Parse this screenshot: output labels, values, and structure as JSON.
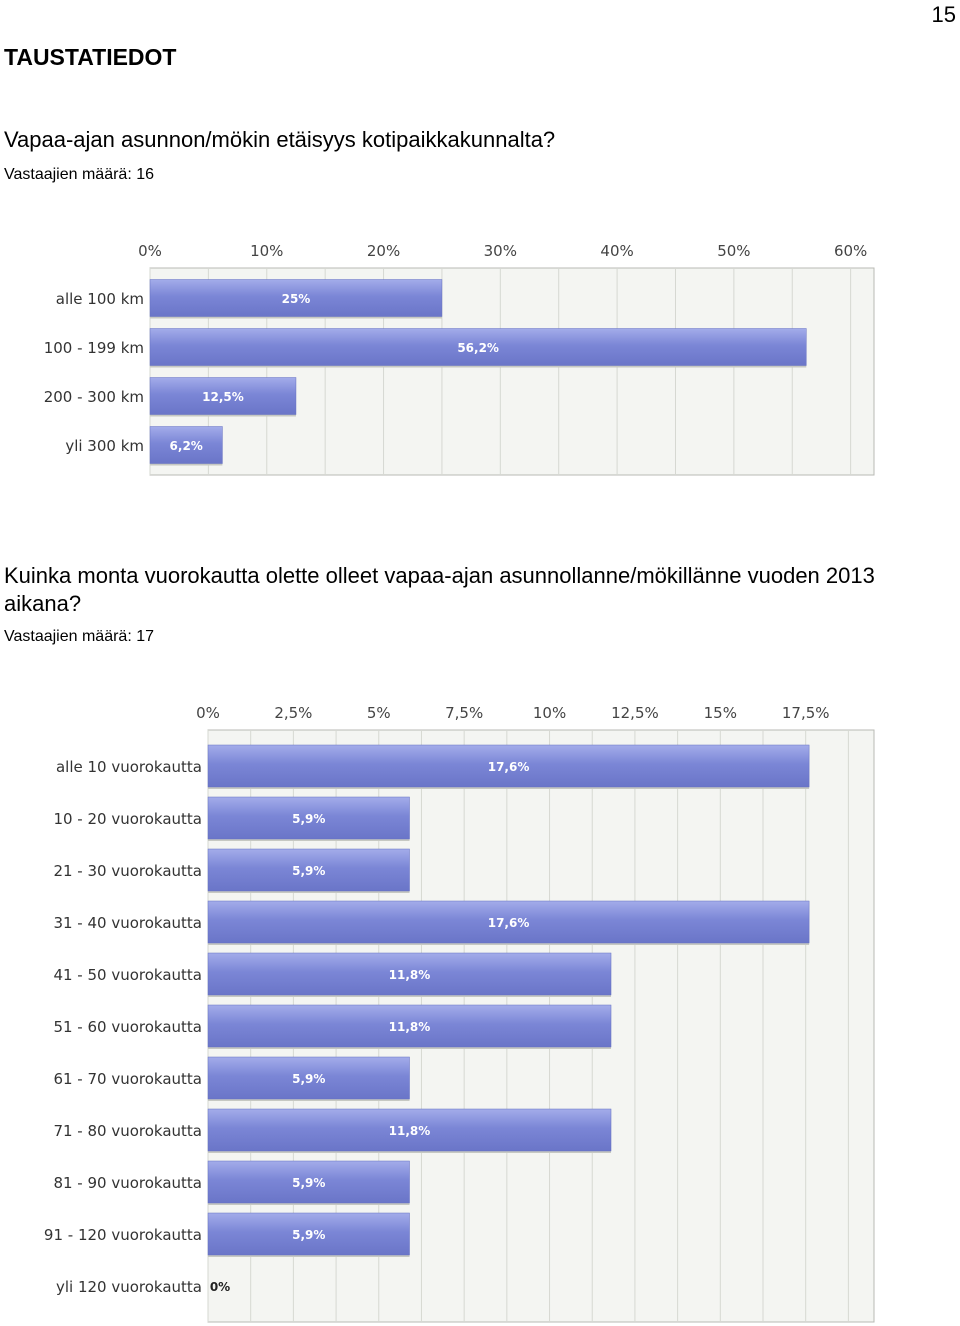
{
  "page_number": "15",
  "section_title": "TAUSTATIEDOT",
  "questions": [
    {
      "question": "Vapaa-ajan asunnon/mökin etäisyys kotipaikkakunnalta?",
      "respondents": "Vastaajien määrä: 16"
    },
    {
      "question": "Kuinka monta vuorokautta olette olleet vapaa-ajan asunnollanne/mökillänne vuoden 2013 aikana?",
      "respondents": "Vastaajien määrä: 17"
    }
  ],
  "colors": {
    "bar": "#7b86d6",
    "bar_highlight": "#a3acea",
    "plot_bg": "#f4f5f2",
    "grid": "#d6d8d2"
  },
  "chart_data": [
    {
      "type": "bar",
      "orientation": "horizontal",
      "categories": [
        "alle 100 km",
        "100 - 199 km",
        "200 - 300 km",
        "yli 300 km"
      ],
      "values": [
        25,
        56.2,
        12.5,
        6.2
      ],
      "value_labels": [
        "25%",
        "56,2%",
        "12,5%",
        "6,2%"
      ],
      "x_ticks": [
        "0%",
        "10%",
        "20%",
        "30%",
        "40%",
        "50%",
        "60%"
      ],
      "xlim": [
        0,
        62
      ],
      "grid": true
    },
    {
      "type": "bar",
      "orientation": "horizontal",
      "categories": [
        "alle 10 vuorokautta",
        "10 - 20 vuorokautta",
        "21 - 30 vuorokautta",
        "31 - 40 vuorokautta",
        "41 - 50 vuorokautta",
        "51 - 60 vuorokautta",
        "61 - 70 vuorokautta",
        "71 - 80 vuorokautta",
        "81 - 90 vuorokautta",
        "91 - 120 vuorokautta",
        "yli 120 vuorokautta"
      ],
      "values": [
        17.6,
        5.9,
        5.9,
        17.6,
        11.8,
        11.8,
        5.9,
        11.8,
        5.9,
        5.9,
        0
      ],
      "value_labels": [
        "17,6%",
        "5,9%",
        "5,9%",
        "17,6%",
        "11,8%",
        "11,8%",
        "5,9%",
        "11,8%",
        "5,9%",
        "5,9%",
        "0%"
      ],
      "x_ticks": [
        "0%",
        "2,5%",
        "5%",
        "7,5%",
        "10%",
        "12,5%",
        "15%",
        "17,5%"
      ],
      "xlim": [
        0,
        19.5
      ],
      "grid": true
    }
  ]
}
